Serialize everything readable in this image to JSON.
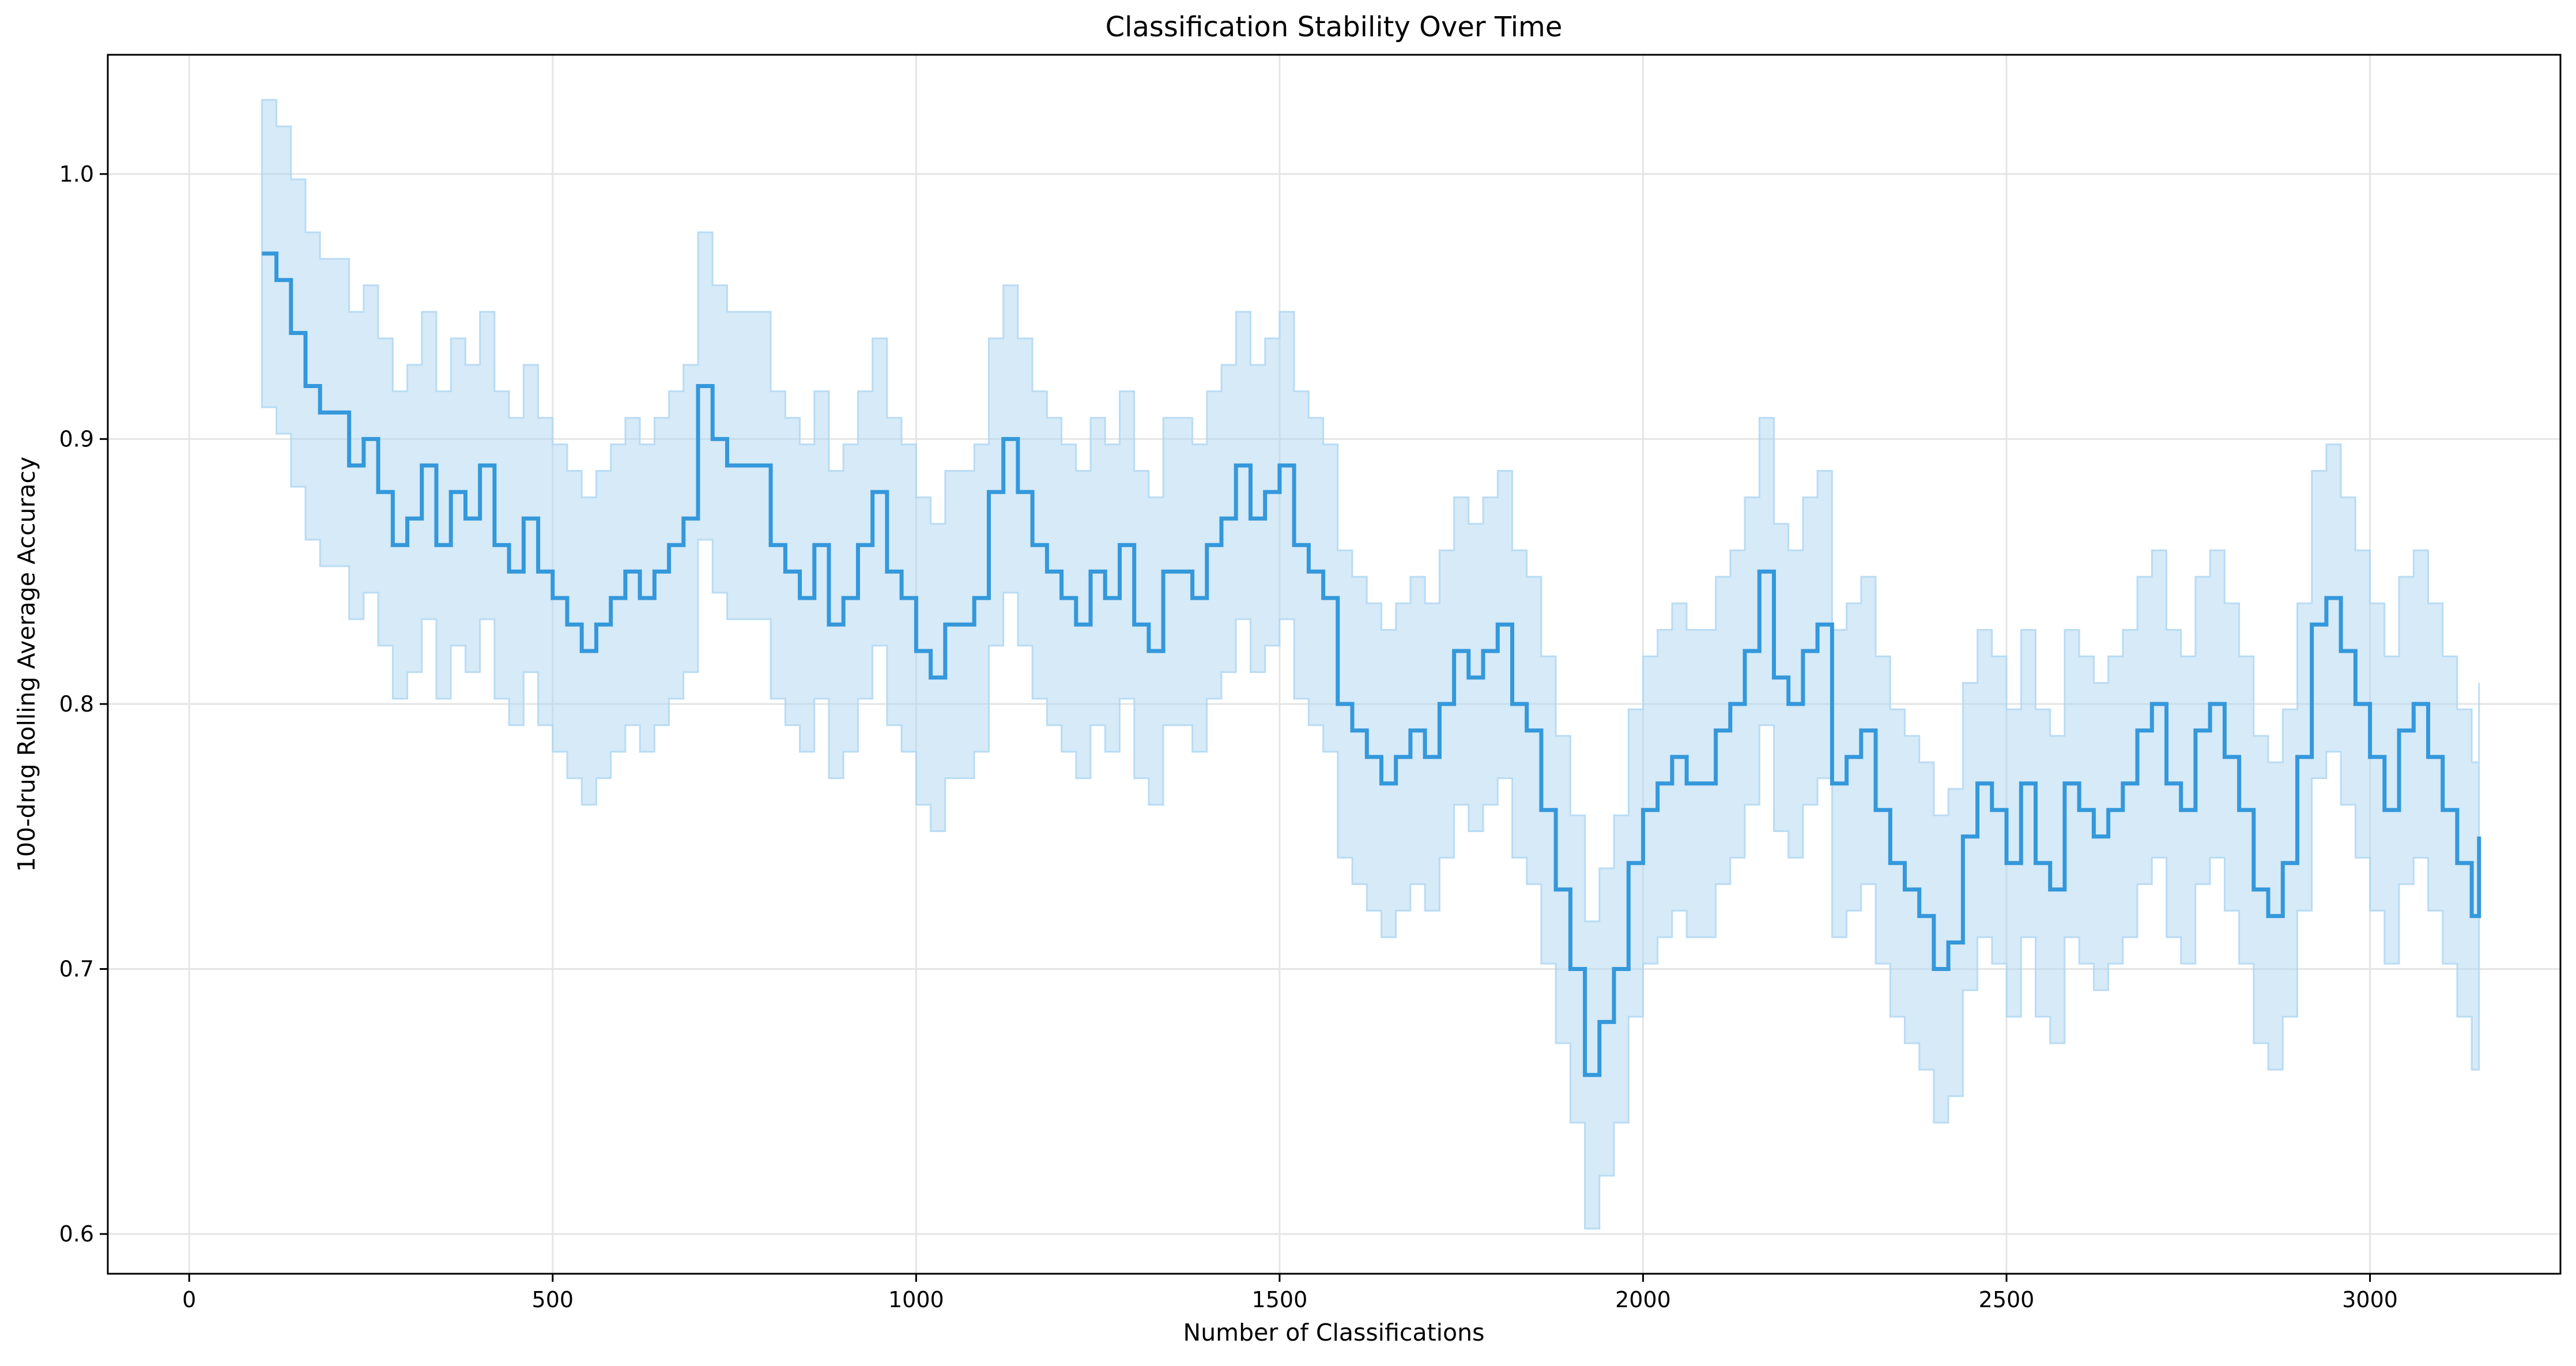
{
  "chart_data": {
    "type": "line",
    "title": "Classification Stability Over Time",
    "xlabel": "Number of Classifications",
    "ylabel": "100-drug Rolling Average Accuracy",
    "xlim": [
      -112,
      3262
    ],
    "ylim": [
      0.585,
      1.045
    ],
    "x_ticks": [
      0,
      500,
      1000,
      1500,
      2000,
      2500,
      3000
    ],
    "y_ticks": [
      0.6,
      0.7,
      0.8,
      0.9,
      1.0
    ],
    "x_tick_labels": [
      "0",
      "500",
      "1000",
      "1500",
      "2000",
      "2500",
      "3000"
    ],
    "y_tick_labels": [
      "0.6",
      "0.7",
      "0.8",
      "0.9",
      "1.0"
    ],
    "grid": true,
    "legend": "none",
    "colors": {
      "line": "#3498db",
      "band": "#aed6f1"
    },
    "band_half_width": 0.058,
    "series": [
      {
        "x": [
          100,
          120,
          140,
          160,
          180,
          200,
          220,
          240,
          260,
          280,
          300,
          320,
          340,
          360,
          380,
          400,
          420,
          440,
          460,
          480,
          500,
          520,
          540,
          560,
          580,
          600,
          620,
          640,
          660,
          680,
          700,
          720,
          740,
          760,
          780,
          800,
          820,
          840,
          860,
          880,
          900,
          920,
          940,
          960,
          980,
          1000,
          1020,
          1040,
          1060,
          1080,
          1100,
          1120,
          1140,
          1160,
          1180,
          1200,
          1220,
          1240,
          1260,
          1280,
          1300,
          1320,
          1340,
          1360,
          1380,
          1400,
          1420,
          1440,
          1460,
          1480,
          1500,
          1520,
          1540,
          1560,
          1580,
          1600,
          1620,
          1640,
          1660,
          1680,
          1700,
          1720,
          1740,
          1760,
          1780,
          1800,
          1820,
          1840,
          1860,
          1880,
          1900,
          1920,
          1940,
          1960,
          1980,
          2000,
          2020,
          2040,
          2060,
          2080,
          2100,
          2120,
          2140,
          2160,
          2180,
          2200,
          2220,
          2240,
          2260,
          2280,
          2300,
          2320,
          2340,
          2360,
          2380,
          2400,
          2420,
          2440,
          2460,
          2480,
          2500,
          2520,
          2540,
          2560,
          2580,
          2600,
          2620,
          2640,
          2660,
          2680,
          2700,
          2720,
          2740,
          2760,
          2780,
          2800,
          2820,
          2840,
          2860,
          2880,
          2900,
          2920,
          2940,
          2960,
          2980,
          3000,
          3020,
          3040,
          3060,
          3080,
          3100,
          3120,
          3140,
          3150
        ],
        "y": [
          0.97,
          0.96,
          0.94,
          0.92,
          0.91,
          0.91,
          0.89,
          0.9,
          0.88,
          0.86,
          0.87,
          0.89,
          0.86,
          0.88,
          0.87,
          0.89,
          0.86,
          0.85,
          0.87,
          0.85,
          0.84,
          0.83,
          0.82,
          0.83,
          0.84,
          0.85,
          0.84,
          0.85,
          0.86,
          0.87,
          0.92,
          0.9,
          0.89,
          0.89,
          0.89,
          0.86,
          0.85,
          0.84,
          0.86,
          0.83,
          0.84,
          0.86,
          0.88,
          0.85,
          0.84,
          0.82,
          0.81,
          0.83,
          0.83,
          0.84,
          0.88,
          0.9,
          0.88,
          0.86,
          0.85,
          0.84,
          0.83,
          0.85,
          0.84,
          0.86,
          0.83,
          0.82,
          0.85,
          0.85,
          0.84,
          0.86,
          0.87,
          0.89,
          0.87,
          0.88,
          0.89,
          0.86,
          0.85,
          0.84,
          0.8,
          0.79,
          0.78,
          0.77,
          0.78,
          0.79,
          0.78,
          0.8,
          0.82,
          0.81,
          0.82,
          0.83,
          0.8,
          0.79,
          0.76,
          0.73,
          0.7,
          0.66,
          0.68,
          0.7,
          0.74,
          0.76,
          0.77,
          0.78,
          0.77,
          0.77,
          0.79,
          0.8,
          0.82,
          0.85,
          0.81,
          0.8,
          0.82,
          0.83,
          0.77,
          0.78,
          0.79,
          0.76,
          0.74,
          0.73,
          0.72,
          0.7,
          0.71,
          0.75,
          0.77,
          0.76,
          0.74,
          0.77,
          0.74,
          0.73,
          0.77,
          0.76,
          0.75,
          0.76,
          0.77,
          0.79,
          0.8,
          0.77,
          0.76,
          0.79,
          0.8,
          0.78,
          0.76,
          0.73,
          0.72,
          0.74,
          0.78,
          0.83,
          0.84,
          0.82,
          0.8,
          0.78,
          0.76,
          0.79,
          0.8,
          0.78,
          0.76,
          0.74,
          0.72,
          0.75
        ]
      }
    ]
  }
}
